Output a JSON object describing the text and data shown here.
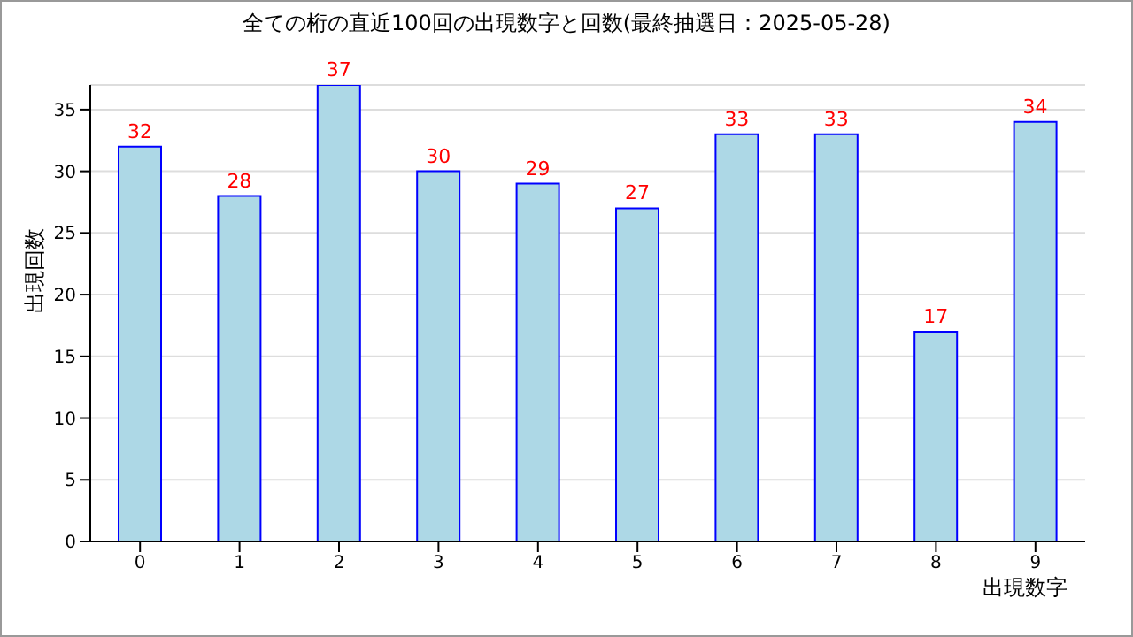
{
  "chart_data": {
    "type": "bar",
    "title": "全ての桁の直近100回の出現数字と回数(最終抽選日：2025-05-28)",
    "xlabel": "出現数字",
    "ylabel": "出現回数",
    "categories": [
      "0",
      "1",
      "2",
      "3",
      "4",
      "5",
      "6",
      "7",
      "8",
      "9"
    ],
    "series": [
      {
        "color": "#add8e6",
        "values": [
          32,
          28,
          37,
          30,
          29,
          27,
          33,
          33,
          17,
          34
        ]
      }
    ],
    "ylim": [
      0,
      37
    ],
    "yticks": [
      0,
      5,
      10,
      15,
      20,
      25,
      30,
      35
    ],
    "grid": "y",
    "data_labels": true,
    "legend": false
  }
}
